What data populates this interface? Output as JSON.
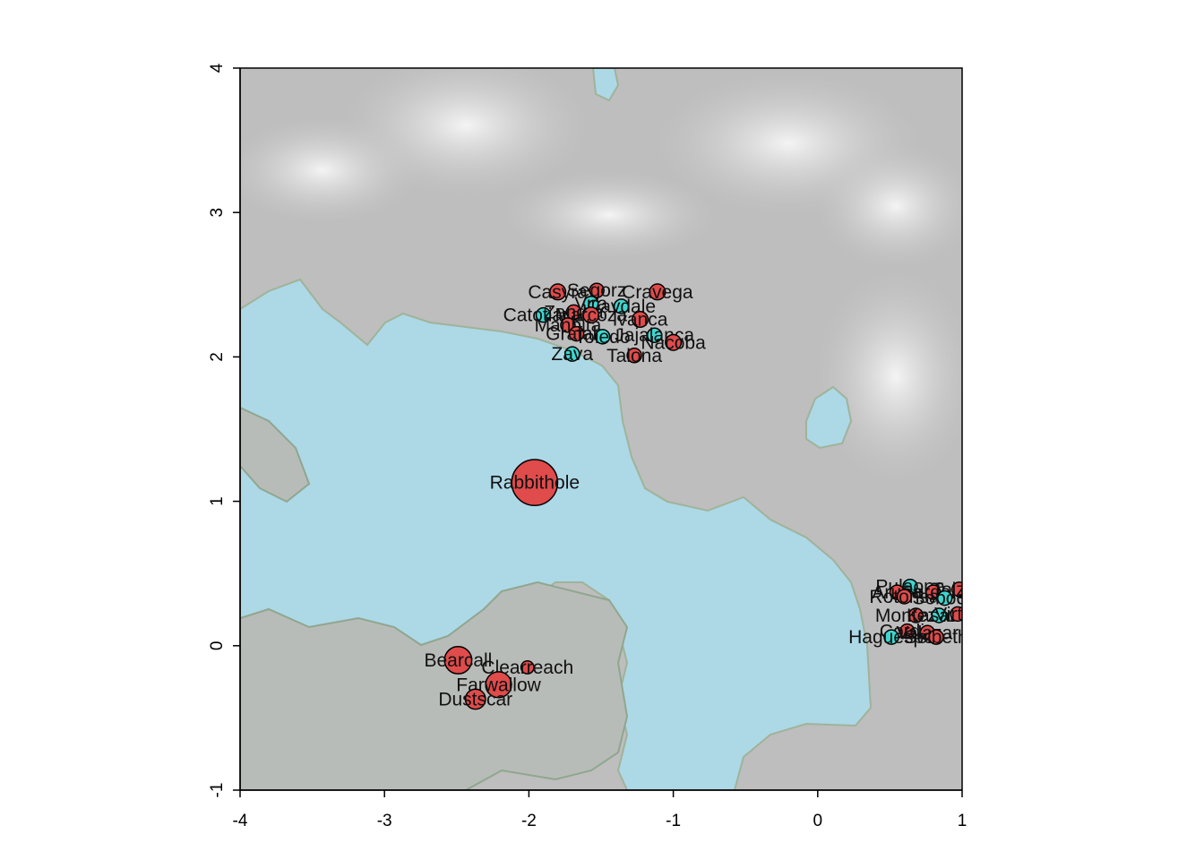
{
  "colors": {
    "water": "#add8e6",
    "land_low": "#bdbdbd",
    "land_high": "#f2f2f2",
    "coast": "#8fa68f",
    "city_red": "#e04b4b",
    "city_cyan": "#3fd6cf",
    "outline": "#000000"
  },
  "chart_data": {
    "type": "scatter",
    "xlim": [
      -4,
      1
    ],
    "ylim": [
      -1,
      4
    ],
    "x_ticks": [
      "-4",
      "-3",
      "-2",
      "-1",
      "0",
      "1"
    ],
    "y_ticks": [
      "-1",
      "0",
      "1",
      "2",
      "3",
      "4"
    ],
    "grid": false,
    "cities": [
      {
        "name": "Rabbithole",
        "x": -1.96,
        "y": 1.13,
        "size": 3.2,
        "color": "red"
      },
      {
        "name": "Bearcall",
        "x": -2.49,
        "y": -0.1,
        "size": 1.9,
        "color": "red"
      },
      {
        "name": "Clearreach",
        "x": -2.01,
        "y": -0.15,
        "size": 0.9,
        "color": "red"
      },
      {
        "name": "Farwallow",
        "x": -2.21,
        "y": -0.27,
        "size": 1.8,
        "color": "red"
      },
      {
        "name": "Dustscar",
        "x": -2.37,
        "y": -0.37,
        "size": 1.4,
        "color": "red"
      },
      {
        "name": "Segorz",
        "x": -1.53,
        "y": 2.46,
        "size": 1.0,
        "color": "red"
      },
      {
        "name": "Casyra",
        "x": -1.8,
        "y": 2.45,
        "size": 1.1,
        "color": "red"
      },
      {
        "name": "Cravega",
        "x": -1.11,
        "y": 2.45,
        "size": 1.1,
        "color": "red"
      },
      {
        "name": "Vira",
        "x": -1.57,
        "y": 2.37,
        "size": 1.0,
        "color": "cyan"
      },
      {
        "name": "Cavdale",
        "x": -1.36,
        "y": 2.35,
        "size": 1.0,
        "color": "cyan"
      },
      {
        "name": "Catotiana",
        "x": -1.9,
        "y": 2.29,
        "size": 1.0,
        "color": "cyan"
      },
      {
        "name": "Zandra",
        "x": -1.69,
        "y": 2.31,
        "size": 1.0,
        "color": "red"
      },
      {
        "name": "Marcoza",
        "x": -1.57,
        "y": 2.29,
        "size": 1.1,
        "color": "red"
      },
      {
        "name": "Ivanca",
        "x": -1.23,
        "y": 2.26,
        "size": 1.1,
        "color": "red"
      },
      {
        "name": "Manbita",
        "x": -1.73,
        "y": 2.22,
        "size": 1.0,
        "color": "red"
      },
      {
        "name": "Grafalo",
        "x": -1.67,
        "y": 2.16,
        "size": 1.0,
        "color": "red"
      },
      {
        "name": "Toledo",
        "x": -1.49,
        "y": 2.14,
        "size": 1.0,
        "color": "cyan"
      },
      {
        "name": "Jajalanca",
        "x": -1.13,
        "y": 2.15,
        "size": 1.0,
        "color": "cyan"
      },
      {
        "name": "Nacoba",
        "x": -1.0,
        "y": 2.1,
        "size": 1.1,
        "color": "red"
      },
      {
        "name": "Zava",
        "x": -1.7,
        "y": 2.02,
        "size": 1.0,
        "color": "cyan"
      },
      {
        "name": "Talona",
        "x": -1.27,
        "y": 2.01,
        "size": 1.0,
        "color": "red"
      },
      {
        "name": "Pulaone",
        "x": 0.64,
        "y": 0.41,
        "size": 1.0,
        "color": "cyan"
      },
      {
        "name": "Aruba",
        "x": 0.55,
        "y": 0.37,
        "size": 1.0,
        "color": "red"
      },
      {
        "name": "Pordale",
        "x": 0.8,
        "y": 0.37,
        "size": 1.0,
        "color": "red"
      },
      {
        "name": "Tolzen",
        "x": 0.98,
        "y": 0.39,
        "size": 1.0,
        "color": "red"
      },
      {
        "name": "Rotonsa",
        "x": 0.6,
        "y": 0.34,
        "size": 1.0,
        "color": "red"
      },
      {
        "name": "Soboda",
        "x": 0.88,
        "y": 0.33,
        "size": 1.0,
        "color": "cyan"
      },
      {
        "name": "Montezzo",
        "x": 0.68,
        "y": 0.21,
        "size": 1.0,
        "color": "red"
      },
      {
        "name": "Kasatra",
        "x": 0.84,
        "y": 0.21,
        "size": 1.0,
        "color": "cyan"
      },
      {
        "name": "Virtilo",
        "x": 0.97,
        "y": 0.22,
        "size": 1.0,
        "color": "red"
      },
      {
        "name": "Cordia",
        "x": 0.62,
        "y": 0.1,
        "size": 1.0,
        "color": "red"
      },
      {
        "name": "Valazar",
        "x": 0.76,
        "y": 0.09,
        "size": 1.0,
        "color": "red"
      },
      {
        "name": "Haguespo",
        "x": 0.51,
        "y": 0.06,
        "size": 1.0,
        "color": "cyan"
      },
      {
        "name": "Selbeth",
        "x": 0.82,
        "y": 0.06,
        "size": 1.0,
        "color": "red"
      }
    ]
  }
}
